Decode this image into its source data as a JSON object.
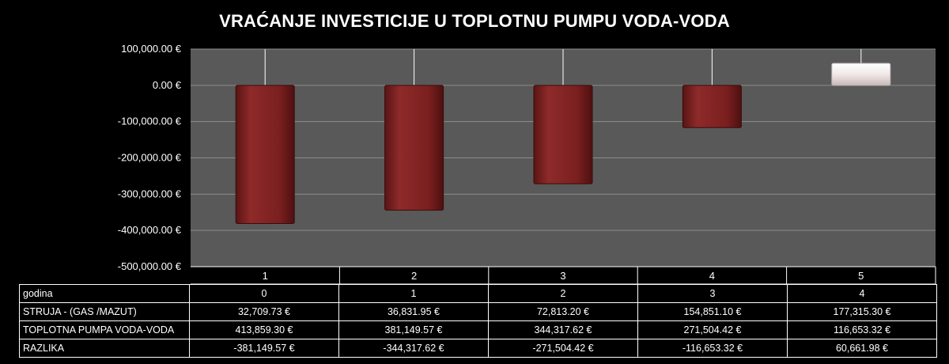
{
  "chart_data": {
    "type": "bar",
    "title": "VRAĆANJE INVESTICIJE U TOPLOTNU PUMPU VODA-VODA",
    "categories": [
      "1",
      "2",
      "3",
      "4",
      "5"
    ],
    "ylim": [
      -500000,
      100000
    ],
    "yticks": [
      100000,
      0,
      -100000,
      -200000,
      -300000,
      -400000,
      -500000
    ],
    "ytick_labels": [
      "100,000.00 €",
      "0.00 €",
      "-100,000.00 €",
      "-200,000.00 €",
      "-300,000.00 €",
      "-400,000.00 €",
      "-500,000.00 €"
    ],
    "grid": true,
    "series": [
      {
        "values": [
          -381149.57,
          -344317.62,
          -271504.42,
          -116653.32,
          60661.98
        ]
      }
    ],
    "colors": {
      "negative": "#7a1f1f",
      "positive": "#efe6e6",
      "plot_bg": "#595959",
      "grid": "#8c8c8c"
    }
  },
  "table": {
    "rows": [
      {
        "label": "godina",
        "values": [
          "0",
          "1",
          "2",
          "3",
          "4"
        ]
      },
      {
        "label": "STRUJA - (GAS /MAZUT)",
        "values": [
          "32,709.73 €",
          "36,831.95 €",
          "72,813.20 €",
          "154,851.10 €",
          "177,315.30 €"
        ]
      },
      {
        "label": "TOPLOTNA PUMPA VODA-VODA",
        "values": [
          "413,859.30 €",
          "381,149.57 €",
          "344,317.62 €",
          "271,504.42 €",
          "116,653.32 €"
        ]
      },
      {
        "label": "RAZLIKA",
        "values": [
          "-381,149.57 €",
          "-344,317.62 €",
          "-271,504.42 €",
          "-116,653.32 €",
          "60,661.98 €"
        ]
      }
    ]
  }
}
